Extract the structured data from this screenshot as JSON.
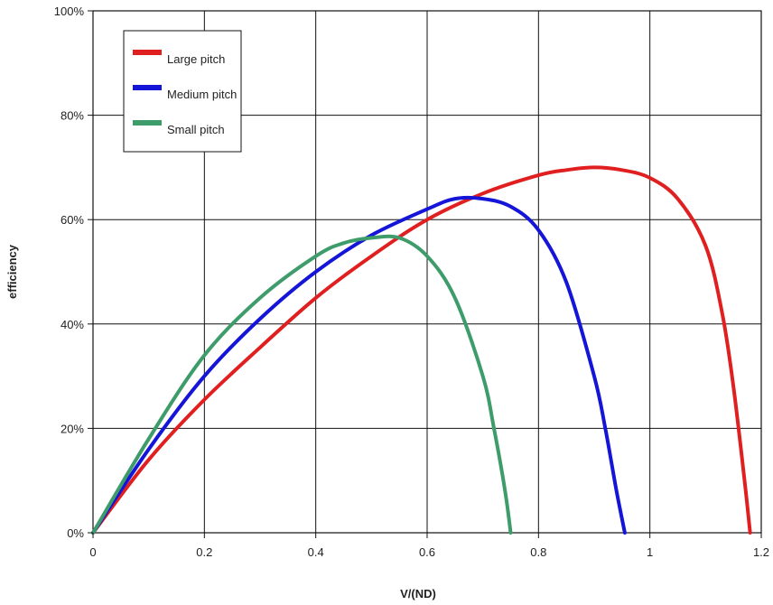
{
  "chart_data": {
    "type": "line",
    "title": "",
    "xlabel": "V/(ND)",
    "ylabel": "efficiency",
    "xlim": [
      0,
      1.2
    ],
    "ylim": [
      0,
      100
    ],
    "x_ticks": [
      "0",
      "0.2",
      "0.4",
      "0.6",
      "0.8",
      "1",
      "1.2"
    ],
    "y_ticks": [
      "0%",
      "20%",
      "40%",
      "60%",
      "80%",
      "100%"
    ],
    "grid": true,
    "legend_position": "top-left",
    "series": [
      {
        "name": "Large pitch",
        "color": "#e02020",
        "x": [
          0,
          0.1,
          0.2,
          0.3,
          0.4,
          0.5,
          0.6,
          0.7,
          0.8,
          0.85,
          0.9,
          0.95,
          1.0,
          1.05,
          1.1,
          1.13,
          1.15,
          1.17,
          1.18
        ],
        "y": [
          0,
          14,
          25.5,
          35.5,
          45,
          53,
          60,
          65,
          68.5,
          69.5,
          70,
          69.5,
          68,
          64,
          55,
          42,
          28,
          10,
          0
        ]
      },
      {
        "name": "Medium pitch",
        "color": "#1515d8",
        "x": [
          0,
          0.1,
          0.2,
          0.3,
          0.4,
          0.5,
          0.6,
          0.65,
          0.7,
          0.75,
          0.8,
          0.85,
          0.9,
          0.92,
          0.94,
          0.955
        ],
        "y": [
          0,
          16,
          30,
          41,
          50,
          57,
          62,
          64,
          64,
          62.5,
          58,
          48,
          30,
          20,
          8,
          0
        ]
      },
      {
        "name": "Small pitch",
        "color": "#3e9c6b",
        "x": [
          0,
          0.1,
          0.2,
          0.3,
          0.4,
          0.45,
          0.5,
          0.55,
          0.6,
          0.65,
          0.7,
          0.72,
          0.74,
          0.75
        ],
        "y": [
          0,
          18,
          34,
          45,
          53,
          55.5,
          56.5,
          56.5,
          53,
          45,
          30,
          20,
          8,
          0
        ]
      }
    ]
  }
}
